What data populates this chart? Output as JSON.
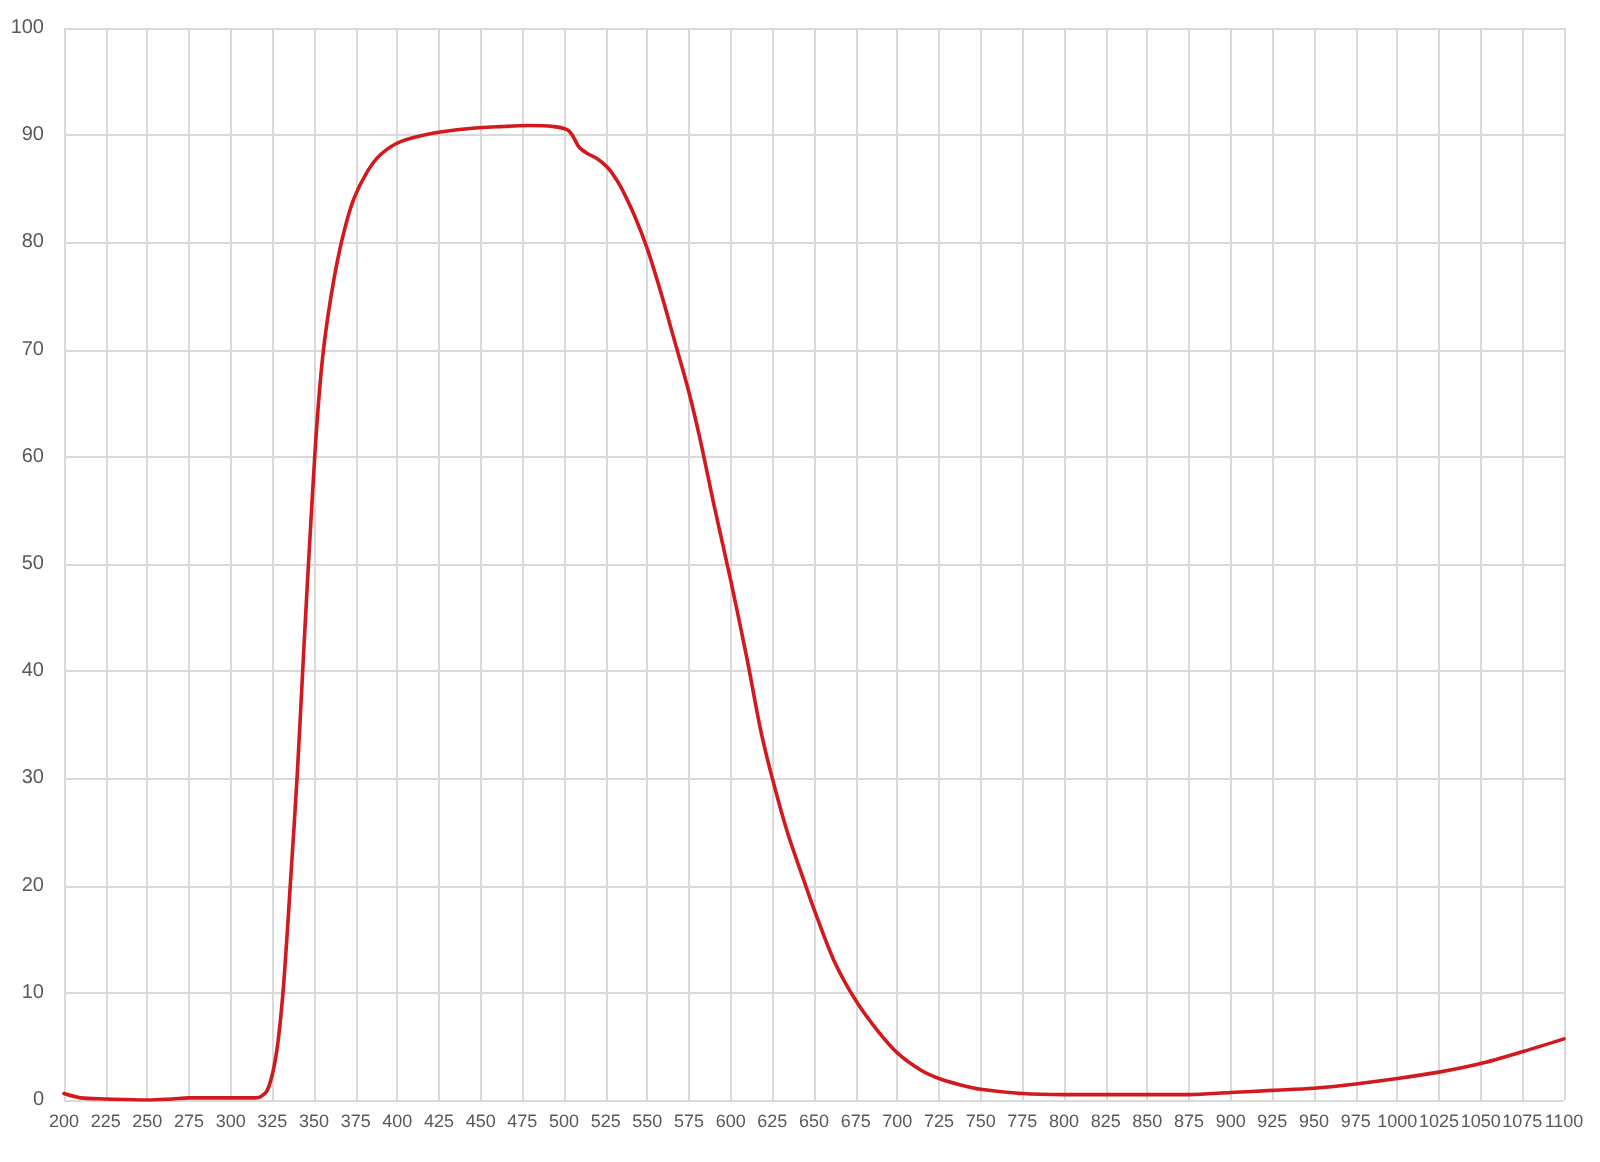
{
  "chart_data": {
    "type": "line",
    "x": [
      200,
      210,
      225,
      250,
      265,
      275,
      300,
      315,
      318,
      322,
      326,
      329,
      332,
      336,
      340,
      344,
      348,
      352,
      356,
      362,
      368,
      374,
      382,
      390,
      402,
      422,
      442,
      462,
      478,
      494,
      502,
      505,
      509,
      514,
      520,
      526,
      530,
      534,
      542,
      550,
      558,
      566,
      575,
      582,
      590,
      600,
      610,
      618,
      625,
      634,
      645,
      650,
      662,
      675,
      688,
      700,
      714,
      725,
      738,
      750,
      775,
      800,
      825,
      850,
      875,
      900,
      925,
      950,
      975,
      1000,
      1025,
      1050,
      1075,
      1100
    ],
    "values": [
      0.6,
      0.2,
      0.1,
      0.0,
      0.1,
      0.2,
      0.2,
      0.2,
      0.3,
      0.9,
      3.1,
      6.2,
      11.2,
      20.6,
      30.5,
      42.4,
      53.6,
      63.6,
      70.4,
      76.6,
      81.0,
      84.1,
      86.6,
      88.2,
      89.4,
      90.2,
      90.6,
      90.8,
      90.9,
      90.8,
      90.5,
      90.0,
      88.9,
      88.3,
      87.8,
      87.0,
      86.2,
      85.2,
      82.6,
      79.4,
      75.4,
      71.0,
      66.0,
      61.4,
      55.5,
      48.5,
      41.0,
      34.5,
      30.0,
      25.0,
      20.0,
      17.8,
      13.0,
      9.3,
      6.5,
      4.4,
      2.8,
      2.0,
      1.4,
      1.0,
      0.6,
      0.5,
      0.5,
      0.5,
      0.5,
      0.7,
      0.9,
      1.1,
      1.5,
      2.0,
      2.6,
      3.4,
      4.5,
      5.7
    ],
    "color": "#d3181e",
    "xlim": [
      200,
      1100
    ],
    "xticks": [
      200,
      225,
      250,
      275,
      300,
      325,
      350,
      375,
      400,
      425,
      450,
      475,
      500,
      525,
      550,
      575,
      600,
      625,
      650,
      675,
      700,
      725,
      750,
      775,
      800,
      825,
      850,
      875,
      900,
      925,
      950,
      975,
      1000,
      1025,
      1050,
      1075,
      1100
    ],
    "ylim": [
      0,
      100
    ],
    "yticks": [
      0,
      10,
      20,
      30,
      40,
      50,
      60,
      70,
      80,
      90,
      100
    ],
    "grid": true,
    "marker": "none",
    "line_style": "solid"
  }
}
